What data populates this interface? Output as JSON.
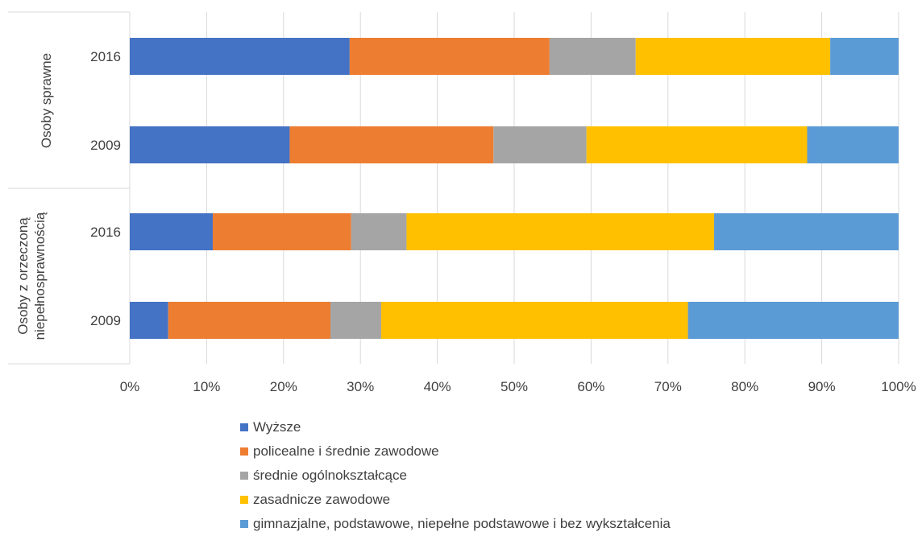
{
  "chart_data": {
    "type": "bar",
    "orientation": "horizontal",
    "stacked": "percent",
    "groups": [
      {
        "label": "Osoby sprawne",
        "categories": [
          "2016",
          "2009"
        ]
      },
      {
        "label": "Osoby z orzeczoną niepełnosprawnością",
        "label_lines": [
          "Osoby z orzeczoną",
          "niepełnosprawnością"
        ],
        "categories": [
          "2016",
          "2009"
        ]
      }
    ],
    "categories": [
      "Osoby sprawne 2016",
      "Osoby sprawne 2009",
      "Osoby z orzeczoną niepełnosprawnością 2016",
      "Osoby z orzeczoną niepełnosprawnością 2009"
    ],
    "series": [
      {
        "name": "Wyższe",
        "color": "#4472C4",
        "values": [
          28.6,
          20.8,
          10.8,
          5.0
        ]
      },
      {
        "name": "policealne i średnie zawodowe",
        "color": "#ED7D31",
        "values": [
          26.0,
          26.5,
          18.0,
          21.1
        ]
      },
      {
        "name": "średnie ogólnokształcące",
        "color": "#A5A5A5",
        "values": [
          11.2,
          12.1,
          7.2,
          6.6
        ]
      },
      {
        "name": "zasadnicze zawodowe",
        "color": "#FFC000",
        "values": [
          25.3,
          28.7,
          40.0,
          39.9
        ]
      },
      {
        "name": "gimnazjalne, podstawowe, niepełne podstawowe i bez wykształcenia",
        "color": "#5B9BD5",
        "values": [
          8.9,
          11.9,
          24.0,
          27.4
        ]
      }
    ],
    "xticks": [
      "0%",
      "10%",
      "20%",
      "30%",
      "40%",
      "50%",
      "60%",
      "70%",
      "80%",
      "90%",
      "100%"
    ],
    "xlim": [
      0,
      100
    ],
    "grid": true,
    "legend_position": "bottom"
  }
}
